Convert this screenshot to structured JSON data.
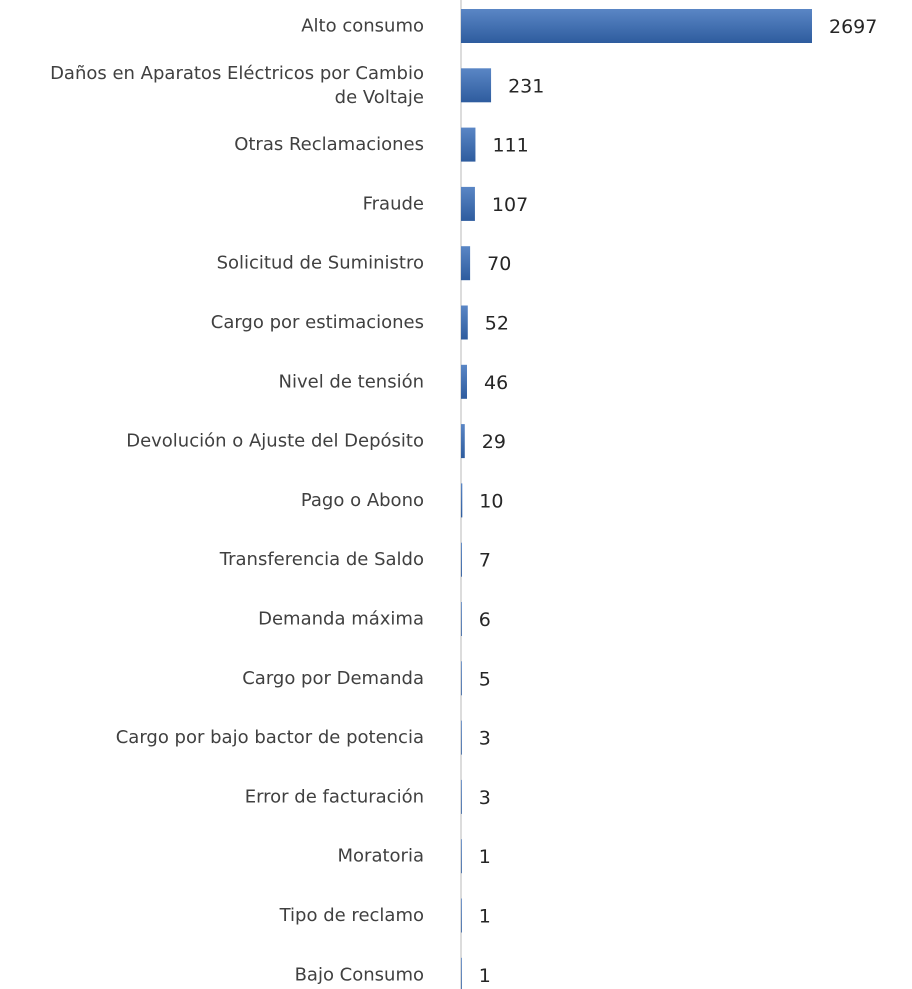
{
  "chart_data": {
    "type": "bar",
    "orientation": "horizontal",
    "categories": [
      [
        "Alto consumo"
      ],
      [
        "Daños en Aparatos Eléctricos por Cambio",
        "de Voltaje"
      ],
      [
        "Otras Reclamaciones"
      ],
      [
        "Fraude"
      ],
      [
        "Solicitud de Suministro"
      ],
      [
        "Cargo por estimaciones"
      ],
      [
        "Nivel de tensión"
      ],
      [
        "Devolución o Ajuste del Depósito"
      ],
      [
        "Pago o Abono"
      ],
      [
        "Transferencia de Saldo"
      ],
      [
        "Demanda máxima"
      ],
      [
        "Cargo por Demanda"
      ],
      [
        "Cargo por bajo bactor de potencia"
      ],
      [
        "Error de facturación"
      ],
      [
        "Moratoria"
      ],
      [
        "Tipo de reclamo"
      ],
      [
        "Bajo Consumo"
      ]
    ],
    "values": [
      2697,
      231,
      111,
      107,
      70,
      52,
      46,
      29,
      10,
      7,
      6,
      5,
      3,
      3,
      1,
      1,
      1
    ],
    "data_labels": [
      "2697",
      "231",
      "111",
      "107",
      "70",
      "52",
      "46",
      "29",
      "10",
      "7",
      "6",
      "5",
      "3",
      "3",
      "1",
      "1",
      "1"
    ],
    "xlim": [
      0,
      2697
    ],
    "grid": false,
    "legend": "none",
    "title": "",
    "xlabel": "",
    "ylabel": ""
  },
  "colors": {
    "bar_light": "#5a86c5",
    "bar_dark": "#2e5c9e",
    "axis_line": "#d0d0d0",
    "category_text": "#404040",
    "value_text": "#262626"
  }
}
